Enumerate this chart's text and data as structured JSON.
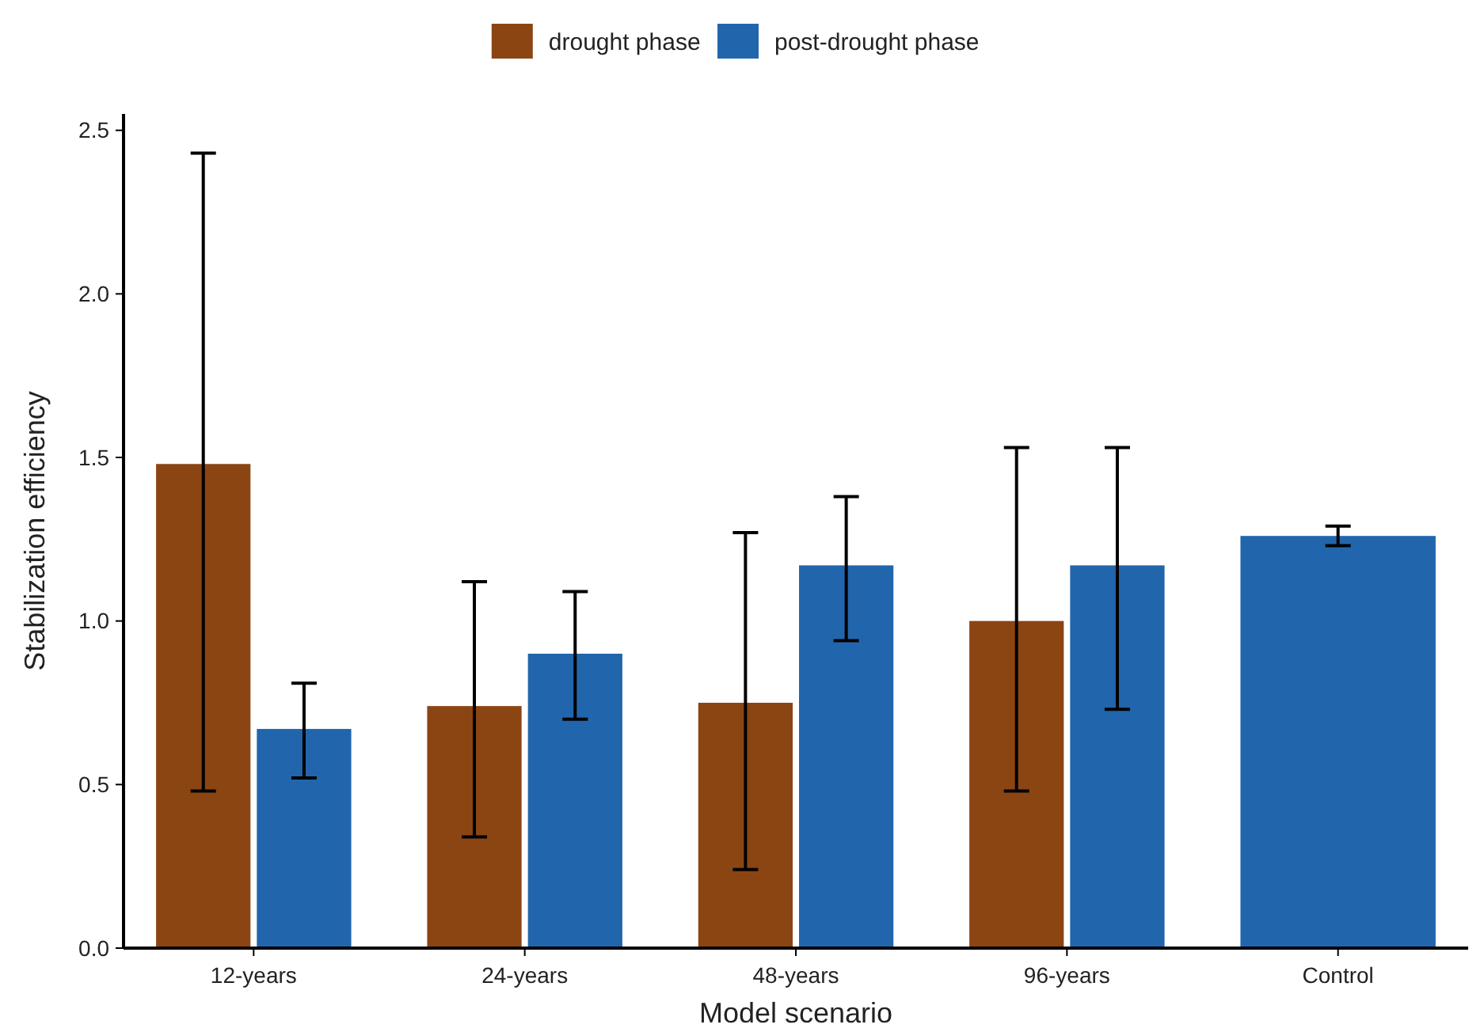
{
  "chart_data": {
    "type": "bar",
    "xlabel": "Model scenario",
    "ylabel": "Stabilization efficiency",
    "categories": [
      "12-years",
      "24-years",
      "48-years",
      "96-years",
      "Control"
    ],
    "ylim": [
      0,
      2.55
    ],
    "yticks": [
      {
        "value": 0,
        "label": "0.0"
      },
      0.5,
      {
        "value": 1,
        "label": "1.0"
      },
      1.5,
      {
        "value": 2,
        "label": "2.0"
      },
      2.5
    ],
    "legend": "top",
    "grid": false,
    "series": [
      {
        "name": "drought phase",
        "color": "#8b4513",
        "values": [
          1.48,
          0.74,
          0.75,
          1.0,
          null
        ],
        "errors": [
          [
            0.48,
            2.43
          ],
          [
            0.34,
            1.12
          ],
          [
            0.24,
            1.27
          ],
          [
            0.48,
            1.53
          ],
          null
        ]
      },
      {
        "name": "post-drought phase",
        "color": "#2166ac",
        "values": [
          0.67,
          0.9,
          1.17,
          1.17,
          1.26
        ],
        "errors": [
          [
            0.52,
            0.81
          ],
          [
            0.7,
            1.09
          ],
          [
            0.94,
            1.38
          ],
          [
            0.73,
            1.53
          ],
          [
            1.23,
            1.29
          ]
        ]
      }
    ]
  }
}
